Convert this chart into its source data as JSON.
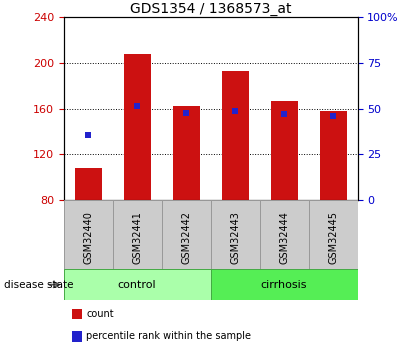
{
  "title": "GDS1354 / 1368573_at",
  "categories": [
    "GSM32440",
    "GSM32441",
    "GSM32442",
    "GSM32443",
    "GSM32444",
    "GSM32445"
  ],
  "bar_base": 80,
  "bar_tops": [
    108,
    208,
    162,
    193,
    167,
    158
  ],
  "blue_markers": [
    137,
    162,
    156,
    158,
    155,
    154
  ],
  "ylim_left": [
    80,
    240
  ],
  "ylim_right": [
    0,
    100
  ],
  "yticks_left": [
    80,
    120,
    160,
    200,
    240
  ],
  "yticks_right": [
    0,
    25,
    50,
    75,
    100
  ],
  "ytick_labels_right": [
    "0",
    "25",
    "50",
    "75",
    "100%"
  ],
  "bar_color": "#cc1111",
  "blue_color": "#2222cc",
  "groups": [
    {
      "label": "control",
      "indices": [
        0,
        1,
        2
      ],
      "color": "#aaffaa"
    },
    {
      "label": "cirrhosis",
      "indices": [
        3,
        4,
        5
      ],
      "color": "#55ee55"
    }
  ],
  "background_color": "#ffffff",
  "tick_label_color_left": "#cc0000",
  "tick_label_color_right": "#0000cc",
  "legend_items": [
    {
      "label": "count",
      "color": "#cc1111"
    },
    {
      "label": "percentile rank within the sample",
      "color": "#2222cc"
    }
  ],
  "bar_width": 0.55,
  "box_color": "#cccccc",
  "box_edge_color": "#999999"
}
